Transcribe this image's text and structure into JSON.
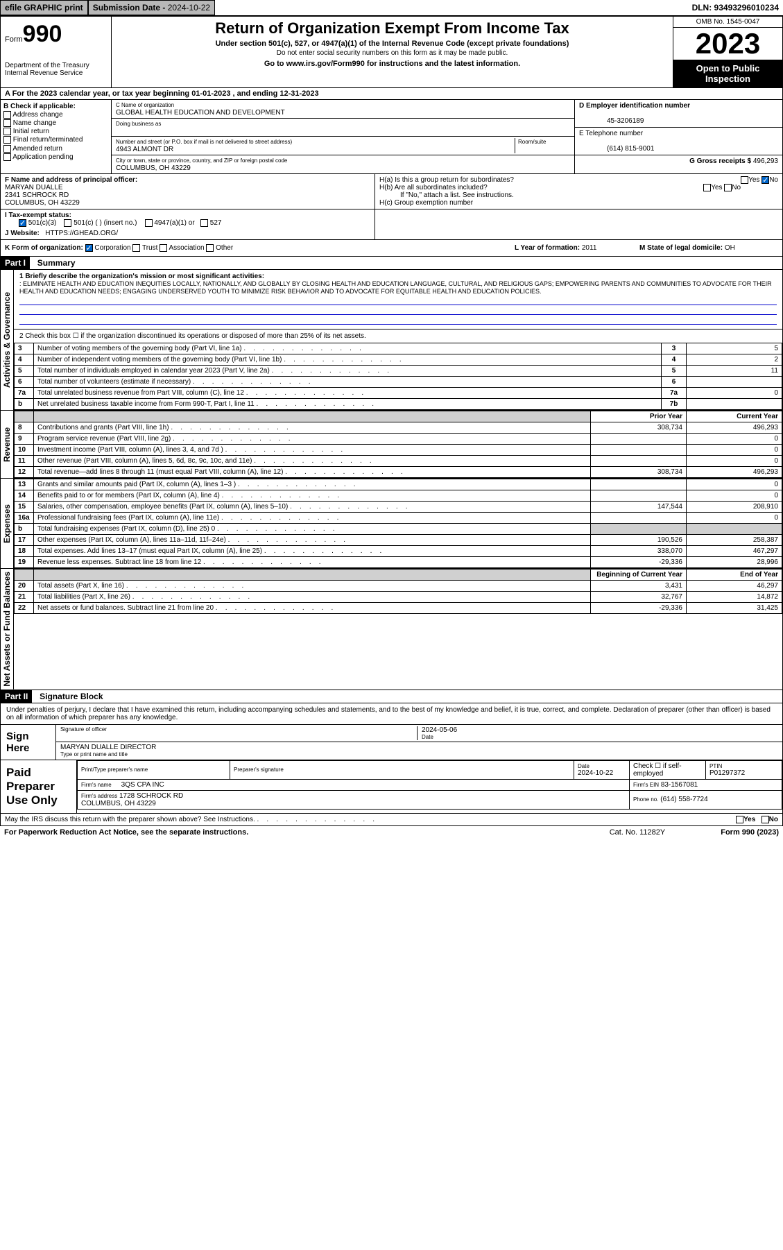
{
  "header": {
    "efile_btn": "efile GRAPHIC print",
    "sub_date_lbl": "Submission Date - ",
    "sub_date": "2024-10-22",
    "dln": "DLN: 93493296010234"
  },
  "form_header": {
    "form_label": "Form",
    "form_num": "990",
    "dept": "Department of the Treasury\nInternal Revenue Service",
    "title": "Return of Organization Exempt From Income Tax",
    "sub1": "Under section 501(c), 527, or 4947(a)(1) of the Internal Revenue Code (except private foundations)",
    "sub2": "Do not enter social security numbers on this form as it may be made public.",
    "link_text": "Go to www.irs.gov/Form990 for instructions and the latest information.",
    "omb": "OMB No. 1545-0047",
    "year": "2023",
    "open": "Open to Public Inspection"
  },
  "period": {
    "text": "A For the 2023 calendar year, or tax year beginning 01-01-2023   , and ending 12-31-2023"
  },
  "sectionB": {
    "label": "B Check if applicable:",
    "items": [
      "Address change",
      "Name change",
      "Initial return",
      "Final return/terminated",
      "Amended return",
      "Application pending"
    ]
  },
  "sectionC": {
    "name_lbl": "C Name of organization",
    "name": "GLOBAL HEALTH EDUCATION AND DEVELOPMENT",
    "dba_lbl": "Doing business as",
    "addr_lbl": "Number and street (or P.O. box if mail is not delivered to street address)",
    "room_lbl": "Room/suite",
    "addr": "4943 ALMONT DR",
    "city_lbl": "City or town, state or province, country, and ZIP or foreign postal code",
    "city": "COLUMBUS, OH  43229"
  },
  "sectionD": {
    "ein_lbl": "D Employer identification number",
    "ein": "45-3206189",
    "phone_lbl": "E Telephone number",
    "phone": "(614) 815-9001",
    "gross_lbl": "G Gross receipts $",
    "gross": "496,293"
  },
  "sectionF": {
    "lbl": "F Name and address of principal officer:",
    "name": "MARYAN DUALLE",
    "addr1": "2341 SCHROCK RD",
    "addr2": "COLUMBUS, OH  43229"
  },
  "sectionH": {
    "ha": "H(a)  Is this a group return for subordinates?",
    "ha_yes": "Yes",
    "ha_no": "No",
    "hb": "H(b)  Are all subordinates included?",
    "hb_yes": "Yes",
    "hb_no": "No",
    "hb_note": "If \"No,\" attach a list. See instructions.",
    "hc": "H(c)  Group exemption number"
  },
  "sectionI": {
    "lbl": "I   Tax-exempt status:",
    "opt1": "501(c)(3)",
    "opt2": "501(c) (  ) (insert no.)",
    "opt3": "4947(a)(1) or",
    "opt4": "527"
  },
  "sectionJ": {
    "lbl": "J   Website:",
    "url": "HTTPS://GHEAD.ORG/"
  },
  "sectionK": {
    "lbl": "K Form of organization:",
    "corp": "Corporation",
    "trust": "Trust",
    "assoc": "Association",
    "other": "Other"
  },
  "sectionL": {
    "lbl": "L Year of formation:",
    "val": "2011"
  },
  "sectionM": {
    "lbl": "M State of legal domicile:",
    "val": "OH"
  },
  "part1": {
    "hdr": "Part I",
    "title": "Summary",
    "vert_gov": "Activities & Governance",
    "vert_rev": "Revenue",
    "vert_exp": "Expenses",
    "vert_net": "Net Assets or Fund Balances",
    "line1_lbl": "1  Briefly describe the organization's mission or most significant activities:",
    "line1_text": ": ELIMINATE HEALTH AND EDUCATION INEQUITIES LOCALLY, NATIONALLY, AND GLOBALLY BY CLOSING HEALTH AND EDUCATION LANGUAGE, CULTURAL, AND RELIGIOUS GAPS; EMPOWERING PARENTS AND COMMUNITIES TO ADVOCATE FOR THEIR HEALTH AND EDUCATION NEEDS; ENGAGING UNDERSERVED YOUTH TO MINIMIZE RISK BEHAVIOR AND TO ADVOCATE FOR EQUITABLE HEALTH AND EDUCATION POLICIES.",
    "line2": "2   Check this box ☐ if the organization discontinued its operations or disposed of more than 25% of its net assets.",
    "rows_gov": [
      {
        "n": "3",
        "d": "Number of voting members of the governing body (Part VI, line 1a)",
        "box": "3",
        "v": "5"
      },
      {
        "n": "4",
        "d": "Number of independent voting members of the governing body (Part VI, line 1b)",
        "box": "4",
        "v": "2"
      },
      {
        "n": "5",
        "d": "Total number of individuals employed in calendar year 2023 (Part V, line 2a)",
        "box": "5",
        "v": "11"
      },
      {
        "n": "6",
        "d": "Total number of volunteers (estimate if necessary)",
        "box": "6",
        "v": ""
      },
      {
        "n": "7a",
        "d": "Total unrelated business revenue from Part VIII, column (C), line 12",
        "box": "7a",
        "v": "0"
      },
      {
        "n": "b",
        "d": "Net unrelated business taxable income from Form 990-T, Part I, line 11",
        "box": "7b",
        "v": ""
      }
    ],
    "prior_hdr": "Prior Year",
    "curr_hdr": "Current Year",
    "rows_rev": [
      {
        "n": "8",
        "d": "Contributions and grants (Part VIII, line 1h)",
        "p": "308,734",
        "c": "496,293"
      },
      {
        "n": "9",
        "d": "Program service revenue (Part VIII, line 2g)",
        "p": "",
        "c": "0"
      },
      {
        "n": "10",
        "d": "Investment income (Part VIII, column (A), lines 3, 4, and 7d )",
        "p": "",
        "c": "0"
      },
      {
        "n": "11",
        "d": "Other revenue (Part VIII, column (A), lines 5, 6d, 8c, 9c, 10c, and 11e)",
        "p": "",
        "c": "0"
      },
      {
        "n": "12",
        "d": "Total revenue—add lines 8 through 11 (must equal Part VIII, column (A), line 12)",
        "p": "308,734",
        "c": "496,293"
      }
    ],
    "rows_exp": [
      {
        "n": "13",
        "d": "Grants and similar amounts paid (Part IX, column (A), lines 1–3 )",
        "p": "",
        "c": "0"
      },
      {
        "n": "14",
        "d": "Benefits paid to or for members (Part IX, column (A), line 4)",
        "p": "",
        "c": "0"
      },
      {
        "n": "15",
        "d": "Salaries, other compensation, employee benefits (Part IX, column (A), lines 5–10)",
        "p": "147,544",
        "c": "208,910"
      },
      {
        "n": "16a",
        "d": "Professional fundraising fees (Part IX, column (A), line 11e)",
        "p": "",
        "c": "0"
      },
      {
        "n": "b",
        "d": "Total fundraising expenses (Part IX, column (D), line 25) 0",
        "p": "shade",
        "c": "shade"
      },
      {
        "n": "17",
        "d": "Other expenses (Part IX, column (A), lines 11a–11d, 11f–24e)",
        "p": "190,526",
        "c": "258,387"
      },
      {
        "n": "18",
        "d": "Total expenses. Add lines 13–17 (must equal Part IX, column (A), line 25)",
        "p": "338,070",
        "c": "467,297"
      },
      {
        "n": "19",
        "d": "Revenue less expenses. Subtract line 18 from line 12",
        "p": "-29,336",
        "c": "28,996"
      }
    ],
    "begin_hdr": "Beginning of Current Year",
    "end_hdr": "End of Year",
    "rows_net": [
      {
        "n": "20",
        "d": "Total assets (Part X, line 16)",
        "p": "3,431",
        "c": "46,297"
      },
      {
        "n": "21",
        "d": "Total liabilities (Part X, line 26)",
        "p": "32,767",
        "c": "14,872"
      },
      {
        "n": "22",
        "d": "Net assets or fund balances. Subtract line 21 from line 20",
        "p": "-29,336",
        "c": "31,425"
      }
    ]
  },
  "part2": {
    "hdr": "Part II",
    "title": "Signature Block",
    "text": "Under penalties of perjury, I declare that I have examined this return, including accompanying schedules and statements, and to the best of my knowledge and belief, it is true, correct, and complete. Declaration of preparer (other than officer) is based on all information of which preparer has any knowledge."
  },
  "sign": {
    "label": "Sign Here",
    "sig_lbl": "Signature of officer",
    "name": "MARYAN DUALLE  DIRECTOR",
    "type_lbl": "Type or print name and title",
    "date_lbl": "Date",
    "date": "2024-05-06"
  },
  "paid": {
    "label": "Paid Preparer Use Only",
    "prep_name_lbl": "Print/Type preparer's name",
    "prep_sig_lbl": "Preparer's signature",
    "date_lbl": "Date",
    "date": "2024-10-22",
    "check_lbl": "Check ☐ if self-employed",
    "ptin_lbl": "PTIN",
    "ptin": "P01297372",
    "firm_name_lbl": "Firm's name",
    "firm_name": "3QS CPA INC",
    "firm_ein_lbl": "Firm's EIN",
    "firm_ein": "83-1567081",
    "firm_addr_lbl": "Firm's address",
    "firm_addr": "1728 SCHROCK RD\nCOLUMBUS, OH  43229",
    "phone_lbl": "Phone no.",
    "phone": "(614) 558-7724"
  },
  "footer": {
    "discuss": "May the IRS discuss this return with the preparer shown above? See Instructions.",
    "yes": "Yes",
    "no": "No",
    "paperwork": "For Paperwork Reduction Act Notice, see the separate instructions.",
    "cat": "Cat. No. 11282Y",
    "form": "Form 990 (2023)"
  }
}
